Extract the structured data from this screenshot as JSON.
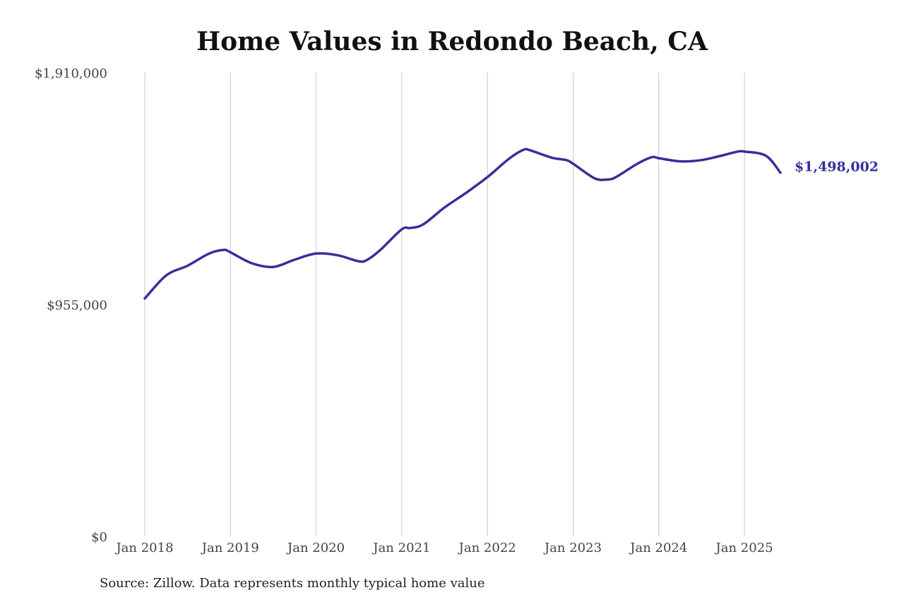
{
  "colors": {
    "line": "#35309a",
    "grid": "#c8c8c8",
    "end_label": "#35309a"
  },
  "chart_data": {
    "type": "line",
    "title": "Home Values in Redondo Beach, CA",
    "source": "Source: Zillow. Data represents monthly typical home value",
    "xlabel": "",
    "ylabel": "",
    "ylim": [
      0,
      1910000
    ],
    "yticks": [
      {
        "value": 0,
        "label": "$0"
      },
      {
        "value": 955000,
        "label": "$955,000"
      },
      {
        "value": 1910000,
        "label": "$1,910,000"
      }
    ],
    "xlim": [
      2018.0,
      2025.4167
    ],
    "xticks": [
      {
        "value": 2018,
        "label": "Jan 2018"
      },
      {
        "value": 2019,
        "label": "Jan 2019"
      },
      {
        "value": 2020,
        "label": "Jan 2020"
      },
      {
        "value": 2021,
        "label": "Jan 2021"
      },
      {
        "value": 2022,
        "label": "Jan 2022"
      },
      {
        "value": 2023,
        "label": "Jan 2023"
      },
      {
        "value": 2024,
        "label": "Jan 2024"
      },
      {
        "value": 2025,
        "label": "Jan 2025"
      }
    ],
    "grid": "vertical",
    "end_label": "$1,498,002",
    "series": [
      {
        "x": [
          2018.0,
          2018.25,
          2018.5,
          2018.75,
          2018.92,
          2019.0,
          2019.25,
          2019.5,
          2019.75,
          2020.0,
          2020.25,
          2020.5,
          2020.6,
          2020.75,
          2021.0,
          2021.1,
          2021.25,
          2021.5,
          2021.75,
          2022.0,
          2022.25,
          2022.42,
          2022.5,
          2022.75,
          2022.92,
          2023.0,
          2023.25,
          2023.4,
          2023.5,
          2023.75,
          2023.92,
          2024.0,
          2024.25,
          2024.5,
          2024.75,
          2024.92,
          2025.0,
          2025.25,
          2025.42
        ],
        "y": [
          980000,
          1075000,
          1115000,
          1165000,
          1180000,
          1170000,
          1125000,
          1110000,
          1140000,
          1165000,
          1158000,
          1133000,
          1140000,
          1180000,
          1265000,
          1270000,
          1285000,
          1355000,
          1415000,
          1480000,
          1555000,
          1592000,
          1590000,
          1560000,
          1550000,
          1535000,
          1475000,
          1470000,
          1480000,
          1535000,
          1562000,
          1558000,
          1545000,
          1550000,
          1570000,
          1585000,
          1585000,
          1568000,
          1498002
        ]
      }
    ]
  }
}
